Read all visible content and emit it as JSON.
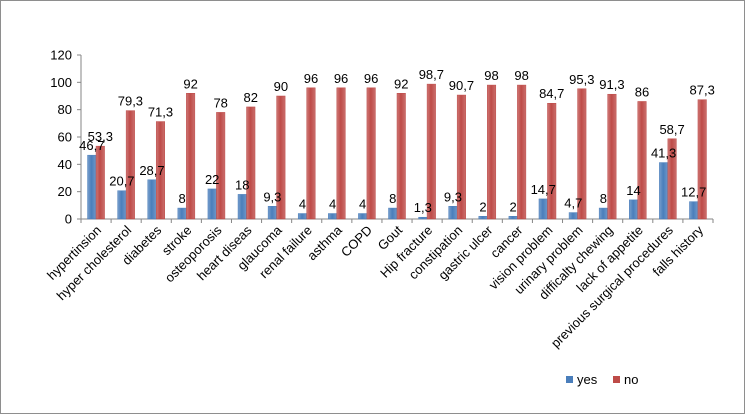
{
  "chart_data": {
    "type": "bar",
    "title": "",
    "xlabel": "",
    "ylabel": "",
    "ylim": [
      0,
      120
    ],
    "yticks": [
      0,
      20,
      40,
      60,
      80,
      100,
      120
    ],
    "ytick_labels": [
      "0",
      "20",
      "40",
      "60",
      "80",
      "100",
      "120"
    ],
    "grid": false,
    "legend_position": "bottom-right",
    "categories": [
      "hypertinsion",
      "hyper cholesterol",
      "diabetes",
      "stroke",
      "osteoporosis",
      "heart diseas",
      "glaucoma",
      "renal failure",
      "asthma",
      "COPD",
      "Gout",
      "Hip fracture",
      "constipation",
      "gastric ulcer",
      "cancer",
      "vision problem",
      "urinary problem",
      "difficalty chewing",
      "lack of appetite",
      "previous surgical procedures",
      "falls history"
    ],
    "series": [
      {
        "name": "yes",
        "color": "#4a7ebb",
        "values": [
          46.7,
          20.7,
          28.7,
          8,
          22,
          18,
          9.3,
          4,
          4,
          4,
          8,
          1.3,
          9.3,
          2,
          2,
          14.7,
          4.7,
          8,
          14,
          41.3,
          12.7
        ],
        "labels": [
          "46,7",
          "20,7",
          "28,7",
          "8",
          "22",
          "18",
          "9,3",
          "4",
          "4",
          "4",
          "8",
          "1,3",
          "9,3",
          "2",
          "2",
          "14,7",
          "4,7",
          "8",
          "14",
          "41,3",
          "12,7"
        ]
      },
      {
        "name": "no",
        "color": "#be4b48",
        "values": [
          53.3,
          79.3,
          71.3,
          92,
          78,
          82,
          90,
          96,
          96,
          96,
          92,
          98.7,
          90.7,
          98,
          98,
          84.7,
          95.3,
          91.3,
          86,
          58.7,
          87.3
        ],
        "labels": [
          "53,3",
          "79,3",
          "71,3",
          "92",
          "78",
          "82",
          "90",
          "96",
          "96",
          "96",
          "92",
          "98,7",
          "90,7",
          "98",
          "98",
          "84,7",
          "95,3",
          "91,3",
          "86",
          "58,7",
          "87,3"
        ]
      }
    ]
  }
}
